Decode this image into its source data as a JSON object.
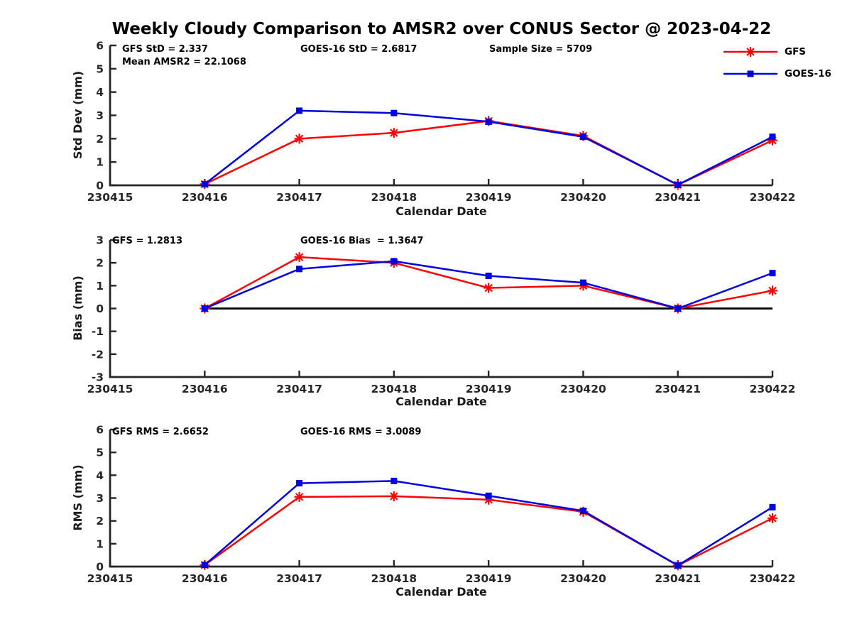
{
  "title": "Weekly Cloudy Comparison to AMSR2 over CONUS Sector @ 2023-04-22",
  "style": {
    "gfs_color": "#ff0000",
    "goes16_color": "#0000e0",
    "axis_color": "#262626",
    "text_color": "#000000",
    "zero_line_color": "#000000"
  },
  "legend": {
    "position": "top-right",
    "items": [
      {
        "label": "GFS",
        "color": "#ff0000",
        "marker": "asterisk"
      },
      {
        "label": "GOES-16",
        "color": "#0000e0",
        "marker": "square"
      }
    ]
  },
  "chart_data": [
    {
      "type": "line",
      "id": "std-dev",
      "ylabel": "Std Dev (mm)",
      "xlabel": "Calendar Date",
      "ylim": [
        0,
        6
      ],
      "yticks": [
        0,
        1,
        2,
        3,
        4,
        5,
        6
      ],
      "grid": false,
      "zero_line": false,
      "x_categories": [
        "230415",
        "230416",
        "230417",
        "230418",
        "230419",
        "230420",
        "230421",
        "230422"
      ],
      "annotations": [
        {
          "text": "GFS StD = 2.337"
        },
        {
          "text": "Mean AMSR2 = 22.1068"
        },
        {
          "text": "GOES-16 StD = 2.6817"
        },
        {
          "text": "Sample Size = 5709"
        }
      ],
      "series": [
        {
          "name": "GFS",
          "color": "#ff0000",
          "marker": "asterisk",
          "x": [
            "230416",
            "230417",
            "230418",
            "230419",
            "230420",
            "230421",
            "230422"
          ],
          "values": [
            0.05,
            2.0,
            2.25,
            2.76,
            2.12,
            0.02,
            1.93
          ]
        },
        {
          "name": "GOES-16",
          "color": "#0000e0",
          "marker": "square",
          "x": [
            "230416",
            "230417",
            "230418",
            "230419",
            "230420",
            "230421",
            "230422"
          ],
          "values": [
            0.05,
            3.2,
            3.1,
            2.73,
            2.08,
            0.02,
            2.08
          ]
        }
      ]
    },
    {
      "type": "line",
      "id": "bias",
      "ylabel": "Bias (mm)",
      "xlabel": "Calendar Date",
      "ylim": [
        -3,
        3
      ],
      "yticks": [
        -3,
        -2,
        -1,
        0,
        1,
        2,
        3
      ],
      "grid": false,
      "zero_line": true,
      "x_categories": [
        "230415",
        "230416",
        "230417",
        "230418",
        "230419",
        "230420",
        "230421",
        "230422"
      ],
      "annotations": [
        {
          "text": "GFS = 1.2813"
        },
        {
          "text": "GOES-16 Bias  = 1.3647"
        }
      ],
      "series": [
        {
          "name": "GFS",
          "color": "#ff0000",
          "marker": "asterisk",
          "x": [
            "230416",
            "230417",
            "230418",
            "230419",
            "230420",
            "230421",
            "230422"
          ],
          "values": [
            0.0,
            2.25,
            2.0,
            0.9,
            1.0,
            0.0,
            0.78
          ]
        },
        {
          "name": "GOES-16",
          "color": "#0000e0",
          "marker": "square",
          "x": [
            "230416",
            "230417",
            "230418",
            "230419",
            "230420",
            "230421",
            "230422"
          ],
          "values": [
            0.0,
            1.73,
            2.07,
            1.43,
            1.13,
            0.0,
            1.55
          ]
        }
      ]
    },
    {
      "type": "line",
      "id": "rms",
      "ylabel": "RMS (mm)",
      "xlabel": "Calendar Date",
      "ylim": [
        0,
        6
      ],
      "yticks": [
        0,
        1,
        2,
        3,
        4,
        5,
        6
      ],
      "grid": false,
      "zero_line": false,
      "x_categories": [
        "230415",
        "230416",
        "230417",
        "230418",
        "230419",
        "230420",
        "230421",
        "230422"
      ],
      "annotations": [
        {
          "text": "GFS RMS = 2.6652"
        },
        {
          "text": "GOES-16 RMS = 3.0089"
        }
      ],
      "series": [
        {
          "name": "GFS",
          "color": "#ff0000",
          "marker": "asterisk",
          "x": [
            "230416",
            "230417",
            "230418",
            "230419",
            "230420",
            "230421",
            "230422"
          ],
          "values": [
            0.07,
            3.05,
            3.08,
            2.93,
            2.4,
            0.05,
            2.12
          ]
        },
        {
          "name": "GOES-16",
          "color": "#0000e0",
          "marker": "square",
          "x": [
            "230416",
            "230417",
            "230418",
            "230419",
            "230420",
            "230421",
            "230422"
          ],
          "values": [
            0.07,
            3.65,
            3.75,
            3.1,
            2.44,
            0.05,
            2.6
          ]
        }
      ]
    }
  ]
}
